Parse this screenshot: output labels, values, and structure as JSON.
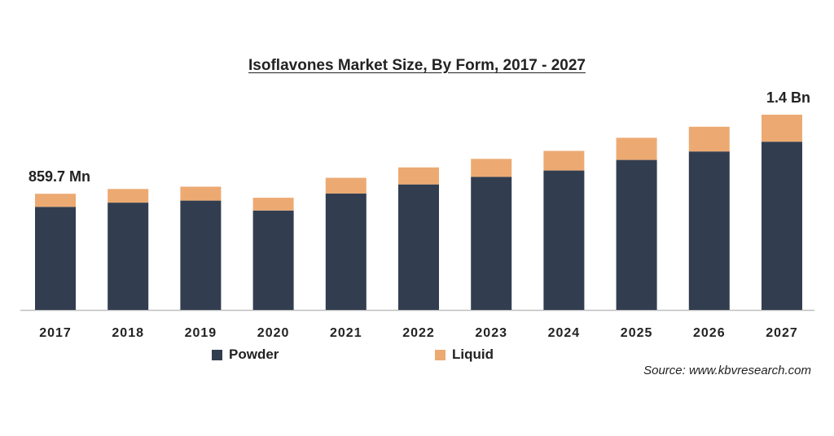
{
  "chart_data": {
    "type": "bar",
    "stacked": true,
    "title": "Isoflavones Market Size, By Form, 2017 - 2027",
    "categories": [
      "2017",
      "2018",
      "2019",
      "2020",
      "2021",
      "2022",
      "2023",
      "2024",
      "2025",
      "2026",
      "2027"
    ],
    "series": [
      {
        "name": "Powder",
        "color": "#323e50",
        "values": [
          763,
          794,
          809,
          736,
          862,
          929,
          985,
          1032,
          1110,
          1173,
          1245
        ]
      },
      {
        "name": "Liquid",
        "color": "#ecaa72",
        "values": [
          97,
          101,
          103,
          94,
          116,
          126,
          133,
          145,
          164,
          183,
          200
        ]
      }
    ],
    "annotations": [
      {
        "category": "2017",
        "text": "859.7 Mn"
      },
      {
        "category": "2027",
        "text": "1.4 Bn"
      }
    ],
    "ylim": [
      0,
      1445
    ],
    "grid": false,
    "legend_position": "bottom"
  },
  "source": "Source: www.kbvresearch.com"
}
